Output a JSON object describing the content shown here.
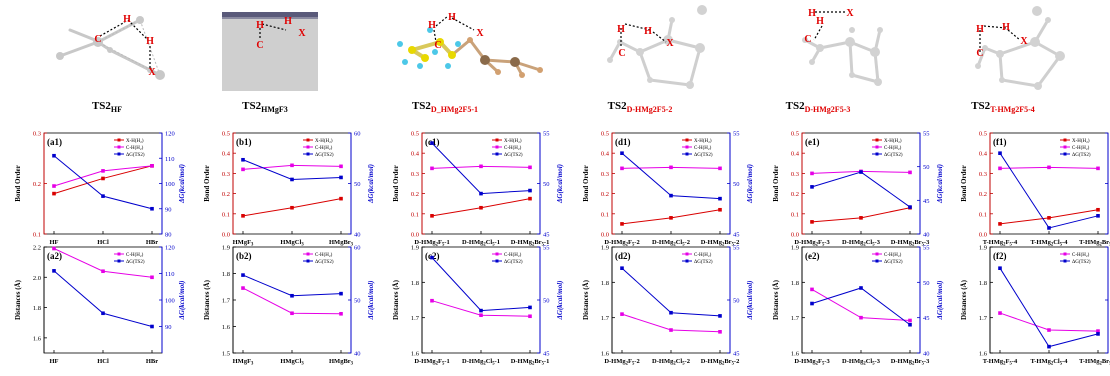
{
  "colors": {
    "bond_xh": "#d90000",
    "bond_ch": "#e600e6",
    "dg": "#0000cc",
    "axis_left": "#c00000",
    "axis_right": "#0000cc",
    "struct": "#c8c8c8",
    "atom_label": "#e00000"
  },
  "structures": [
    {
      "label": "TS2",
      "sub": "HF",
      "sub_color": "#000000"
    },
    {
      "label": "TS2",
      "sub": "HMgF3",
      "sub_color": "#000000"
    },
    {
      "label": "TS2",
      "sub": "D_HMg2F5-1",
      "sub_color": "#e00000"
    },
    {
      "label": "TS2",
      "sub": "D-HMg2F5-2",
      "sub_color": "#e00000"
    },
    {
      "label": "TS2",
      "sub": "D-HMg2F5-3",
      "sub_color": "#e00000"
    },
    {
      "label": "TS2",
      "sub": "T-HMg2F5-4",
      "sub_color": "#e00000"
    }
  ],
  "atom_labels": {
    "h": "H",
    "c": "C",
    "x": "X"
  },
  "legend_top": {
    "xh": "X-H(H₂)",
    "ch": "C-H(H₂)",
    "dg": "ΔG(TS2)"
  },
  "legend_bot": {
    "ch": "C-H(H₂)",
    "dg": "ΔG(TS2)"
  },
  "axis_titles": {
    "bond_order": "Bond Order",
    "distances": "Distances (Å)",
    "dg": "ΔG(kcal/mol)"
  },
  "panels_top": [
    "(a1)",
    "(b1)",
    "(c1)",
    "(d1)",
    "(e1)",
    "(f1)"
  ],
  "panels_bot": [
    "(a2)",
    "(b2)",
    "(c2)",
    "(d2)",
    "(e2)",
    "(f2)"
  ],
  "chart_data": [
    {
      "id": "a1",
      "type": "line",
      "categories": [
        "HF",
        "HCl",
        "HBr"
      ],
      "ylim": [
        0.1,
        0.3
      ],
      "y2lim": [
        80,
        120
      ],
      "yticks": [
        "0.1",
        "0.2",
        "0.3"
      ],
      "y2ticks": [
        "80",
        "90",
        "100",
        "110",
        "120"
      ],
      "series": [
        {
          "name": "X-H(H₂)",
          "axis": "left",
          "values": [
            0.18,
            0.21,
            0.235
          ]
        },
        {
          "name": "C-H(H₂)",
          "axis": "left",
          "values": [
            0.195,
            0.225,
            0.235
          ]
        },
        {
          "name": "ΔG(TS2)",
          "axis": "right",
          "values": [
            111,
            95,
            90
          ]
        }
      ]
    },
    {
      "id": "b1",
      "type": "line",
      "categories": [
        "HMgF3",
        "HMgCl3",
        "HMgBr3"
      ],
      "ylim": [
        0.0,
        0.5
      ],
      "y2lim": [
        40,
        60
      ],
      "yticks": [
        "0.0",
        "0.1",
        "0.2",
        "0.3",
        "0.4",
        "0.5"
      ],
      "y2ticks": [
        "40",
        "50",
        "60"
      ],
      "series": [
        {
          "name": "X-H(H₂)",
          "axis": "left",
          "values": [
            0.09,
            0.13,
            0.175
          ]
        },
        {
          "name": "C-H(H₂)",
          "axis": "left",
          "values": [
            0.32,
            0.34,
            0.335
          ]
        },
        {
          "name": "ΔG(TS2)",
          "axis": "right",
          "values": [
            54.7,
            50.8,
            51.2
          ]
        }
      ]
    },
    {
      "id": "c1",
      "type": "line",
      "categories": [
        "D-HMg2F5-1",
        "D-HMg2Cl5-1",
        "D-HMg2Br5-1"
      ],
      "ylim": [
        0.0,
        0.5
      ],
      "y2lim": [
        45,
        55
      ],
      "yticks": [
        "0.0",
        "0.1",
        "0.2",
        "0.3",
        "0.4",
        "0.5"
      ],
      "y2ticks": [
        "45",
        "50",
        "55"
      ],
      "series": [
        {
          "name": "X-H(H₂)",
          "axis": "left",
          "values": [
            0.09,
            0.13,
            0.175
          ]
        },
        {
          "name": "C-H(H₂)",
          "axis": "left",
          "values": [
            0.325,
            0.335,
            0.33
          ]
        },
        {
          "name": "ΔG(TS2)",
          "axis": "right",
          "values": [
            54,
            49,
            49.3
          ]
        }
      ]
    },
    {
      "id": "d1",
      "type": "line",
      "categories": [
        "D-HMg2F5-2",
        "D-HMg2Cl5-2",
        "D-HMg2Br5-2"
      ],
      "ylim": [
        0.0,
        0.5
      ],
      "y2lim": [
        45,
        55
      ],
      "yticks": [
        "0.0",
        "0.1",
        "0.2",
        "0.3",
        "0.4",
        "0.5"
      ],
      "y2ticks": [
        "45",
        "50",
        "55"
      ],
      "series": [
        {
          "name": "X-H(H₂)",
          "axis": "left",
          "values": [
            0.05,
            0.08,
            0.12
          ]
        },
        {
          "name": "C-H(H₂)",
          "axis": "left",
          "values": [
            0.325,
            0.33,
            0.325
          ]
        },
        {
          "name": "ΔG(TS2)",
          "axis": "right",
          "values": [
            53,
            48.8,
            48.5
          ]
        }
      ]
    },
    {
      "id": "e1",
      "type": "line",
      "categories": [
        "D-HMg2F5-3",
        "D-HMg2Cl5-3",
        "D-HMg2Br5-3"
      ],
      "ylim": [
        0.0,
        0.5
      ],
      "y2lim": [
        40,
        55
      ],
      "yticks": [
        "0.0",
        "0.1",
        "0.2",
        "0.3",
        "0.4",
        "0.5"
      ],
      "y2ticks": [
        "40",
        "45",
        "50",
        "55"
      ],
      "series": [
        {
          "name": "X-H(H₂)",
          "axis": "left",
          "values": [
            0.06,
            0.08,
            0.13
          ]
        },
        {
          "name": "C-H(H₂)",
          "axis": "left",
          "values": [
            0.3,
            0.31,
            0.305
          ]
        },
        {
          "name": "ΔG(TS2)",
          "axis": "right",
          "values": [
            47,
            49.2,
            44
          ]
        }
      ]
    },
    {
      "id": "f1",
      "type": "line",
      "categories": [
        "T-HMg2F5-4",
        "T-HMg2Cl5-4",
        "T-HMg2Br5-4"
      ],
      "ylim": [
        0.0,
        0.5
      ],
      "y2lim": [
        45,
        55
      ],
      "yticks": [
        "0.0",
        "0.1",
        "0.2",
        "0.3",
        "0.4",
        "0.5"
      ],
      "y2ticks": [
        "45",
        "50",
        "55"
      ],
      "series": [
        {
          "name": "X-H(H₂)",
          "axis": "left",
          "values": [
            0.05,
            0.08,
            0.12
          ]
        },
        {
          "name": "C-H(H₂)",
          "axis": "left",
          "values": [
            0.325,
            0.33,
            0.325
          ]
        },
        {
          "name": "ΔG(TS2)",
          "axis": "right",
          "values": [
            53,
            45.6,
            46.8
          ]
        }
      ]
    },
    {
      "id": "a2",
      "type": "line",
      "categories": [
        "HF",
        "HCl",
        "HBr"
      ],
      "ylim": [
        1.5,
        2.2
      ],
      "y2lim": [
        80,
        120
      ],
      "yticks": [
        "1.6",
        "1.8",
        "2.0",
        "2.2"
      ],
      "y2ticks": [
        "90",
        "100",
        "110",
        "120"
      ],
      "series": [
        {
          "name": "C-H(H₂)",
          "axis": "left",
          "values": [
            2.19,
            2.04,
            2.0
          ]
        },
        {
          "name": "ΔG(TS2)",
          "axis": "right",
          "values": [
            111,
            95,
            90
          ]
        }
      ]
    },
    {
      "id": "b2",
      "type": "line",
      "categories": [
        "HMgF3",
        "HMgCl3",
        "HMgBr3"
      ],
      "ylim": [
        1.5,
        1.9
      ],
      "y2lim": [
        40,
        60
      ],
      "yticks": [
        "1.5",
        "1.6",
        "1.7",
        "1.8",
        "1.9"
      ],
      "y2ticks": [
        "40",
        "50",
        "60"
      ],
      "series": [
        {
          "name": "C-H(H₂)",
          "axis": "left",
          "values": [
            1.745,
            1.65,
            1.648
          ]
        },
        {
          "name": "ΔG(TS2)",
          "axis": "right",
          "values": [
            54.7,
            50.8,
            51.2
          ]
        }
      ]
    },
    {
      "id": "c2",
      "type": "line",
      "categories": [
        "D-HMg2F5-1",
        "D-HMg2Cl5-1",
        "D-HMg2Br5-1"
      ],
      "ylim": [
        1.6,
        1.9
      ],
      "y2lim": [
        45,
        55
      ],
      "yticks": [
        "1.6",
        "1.7",
        "1.8",
        "1.9"
      ],
      "y2ticks": [
        "45",
        "50",
        "55"
      ],
      "series": [
        {
          "name": "C-H(H₂)",
          "axis": "left",
          "values": [
            1.748,
            1.707,
            1.704
          ]
        },
        {
          "name": "ΔG(TS2)",
          "axis": "right",
          "values": [
            54,
            49,
            49.3
          ]
        }
      ]
    },
    {
      "id": "d2",
      "type": "line",
      "categories": [
        "D-HMg2F5-2",
        "D-HMg2Cl5-2",
        "D-HMg2Br5-2"
      ],
      "ylim": [
        1.6,
        1.9
      ],
      "y2lim": [
        45,
        55
      ],
      "yticks": [
        "1.6",
        "1.7",
        "1.8",
        "1.9"
      ],
      "y2ticks": [
        "45",
        "50",
        "55"
      ],
      "series": [
        {
          "name": "C-H(H₂)",
          "axis": "left",
          "values": [
            1.71,
            1.665,
            1.66
          ]
        },
        {
          "name": "ΔG(TS2)",
          "axis": "right",
          "values": [
            53,
            48.8,
            48.5
          ]
        }
      ]
    },
    {
      "id": "e2",
      "type": "line",
      "categories": [
        "D-HMg2F5-3",
        "D-HMg2Cl5-3",
        "D-HMg2Br5-3"
      ],
      "ylim": [
        1.6,
        1.9
      ],
      "y2lim": [
        40,
        55
      ],
      "yticks": [
        "1.6",
        "1.7",
        "1.8",
        "1.9"
      ],
      "y2ticks": [
        "40",
        "45",
        "50",
        "55"
      ],
      "series": [
        {
          "name": "C-H(H₂)",
          "axis": "left",
          "values": [
            1.78,
            1.7,
            1.692
          ]
        },
        {
          "name": "ΔG(TS2)",
          "axis": "right",
          "values": [
            47,
            49.2,
            44
          ]
        }
      ]
    },
    {
      "id": "f2",
      "type": "line",
      "categories": [
        "T-HMg2F5-4",
        "T-HMg2Cl5-4",
        "T-HMg2Br5-4"
      ],
      "ylim": [
        1.6,
        1.9
      ],
      "y2lim": [
        45,
        55
      ],
      "yticks": [
        "1.6",
        "1.7",
        "1.8",
        "1.9"
      ],
      "y2ticks": [
        "45",
        "50",
        "55"
      ],
      "series": [
        {
          "name": "C-H(H₂)",
          "axis": "left",
          "values": [
            1.713,
            1.665,
            1.662
          ]
        },
        {
          "name": "ΔG(TS2)",
          "axis": "right",
          "values": [
            53,
            45.6,
            46.8
          ]
        }
      ]
    }
  ]
}
